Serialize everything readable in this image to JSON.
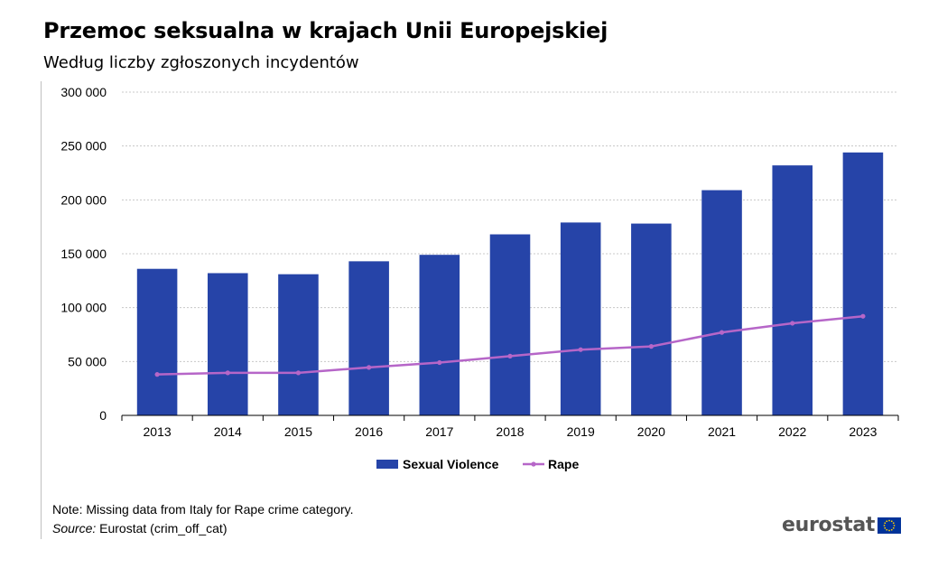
{
  "header": {
    "title": "Przemoc seksualna w krajach Unii Europejskiej",
    "subtitle": "Według liczby zgłoszonych incydentów"
  },
  "footer": {
    "note": "Note: Missing data from Italy for Rape crime category.",
    "source_label": "Source:",
    "source_value": "Eurostat (crim_off_cat)",
    "logo_text": "eurostat",
    "logo_icon": "eu-flag-icon"
  },
  "colors": {
    "bar": "#2644a8",
    "line": "#b666c8",
    "grid": "#c8c8c8"
  },
  "chart_data": {
    "type": "bar",
    "categories": [
      "2013",
      "2014",
      "2015",
      "2016",
      "2017",
      "2018",
      "2019",
      "2020",
      "2021",
      "2022",
      "2023"
    ],
    "series": [
      {
        "name": "Sexual Violence",
        "type": "bar",
        "values": [
          136000,
          132000,
          131000,
          143000,
          149000,
          168000,
          179000,
          178000,
          209000,
          232000,
          244000
        ]
      },
      {
        "name": "Rape",
        "type": "line",
        "values": [
          38000,
          39500,
          39500,
          44500,
          49000,
          55000,
          61000,
          64000,
          77000,
          85500,
          92000
        ]
      }
    ],
    "y_ticks": [
      "0",
      "50 000",
      "100 000",
      "150 000",
      "200 000",
      "250 000",
      "300 000"
    ],
    "ylim": [
      0,
      300000
    ],
    "grid": true,
    "legend_position": "bottom"
  }
}
